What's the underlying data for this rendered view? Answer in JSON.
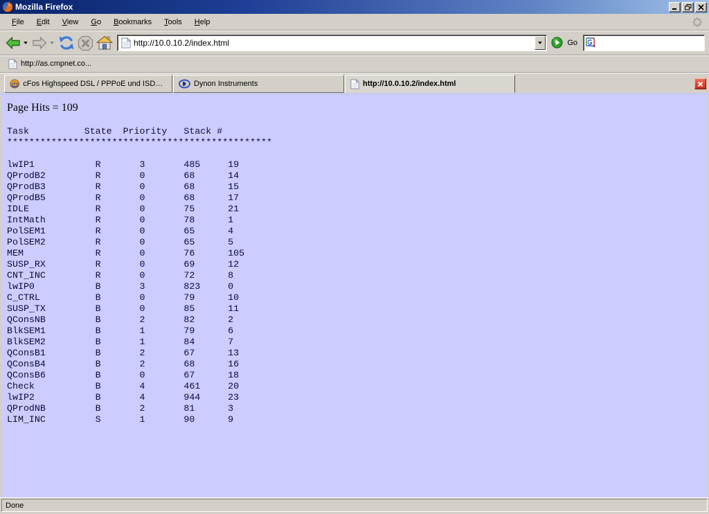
{
  "window": {
    "title": "Mozilla Firefox"
  },
  "menu": {
    "items": [
      "File",
      "Edit",
      "View",
      "Go",
      "Bookmarks",
      "Tools",
      "Help"
    ]
  },
  "toolbar": {
    "url_value": "http://10.0.10.2/index.html",
    "go_label": "Go",
    "search_value": ""
  },
  "bookmarks_bar": {
    "items": [
      {
        "label": "http://as.cmpnet.co..."
      }
    ]
  },
  "tabs": [
    {
      "label": "cFos Highspeed DSL / PPPoE und ISDN CAP...",
      "active": false
    },
    {
      "label": "Dynon Instruments",
      "active": false
    },
    {
      "label": "http://10.0.10.2/index.html",
      "active": true
    }
  ],
  "page": {
    "hits_line": "Page Hits = 109",
    "table": {
      "columns": [
        "Task",
        "State",
        "Priority",
        "Stack",
        "#"
      ],
      "separator": "************************************************",
      "rows": [
        [
          "lwIP1",
          "R",
          "3",
          "485",
          "19"
        ],
        [
          "QProdB2",
          "R",
          "0",
          "68",
          "14"
        ],
        [
          "QProdB3",
          "R",
          "0",
          "68",
          "15"
        ],
        [
          "QProdB5",
          "R",
          "0",
          "68",
          "17"
        ],
        [
          "IDLE",
          "R",
          "0",
          "75",
          "21"
        ],
        [
          "IntMath",
          "R",
          "0",
          "78",
          "1"
        ],
        [
          "PolSEM1",
          "R",
          "0",
          "65",
          "4"
        ],
        [
          "PolSEM2",
          "R",
          "0",
          "65",
          "5"
        ],
        [
          "MEM",
          "R",
          "0",
          "76",
          "105"
        ],
        [
          "SUSP_RX",
          "R",
          "0",
          "69",
          "12"
        ],
        [
          "CNT_INC",
          "R",
          "0",
          "72",
          "8"
        ],
        [
          "lwIP0",
          "B",
          "3",
          "823",
          "0"
        ],
        [
          "C_CTRL",
          "B",
          "0",
          "79",
          "10"
        ],
        [
          "SUSP_TX",
          "B",
          "0",
          "85",
          "11"
        ],
        [
          "QConsNB",
          "B",
          "2",
          "82",
          "2"
        ],
        [
          "BlkSEM1",
          "B",
          "1",
          "79",
          "6"
        ],
        [
          "BlkSEM2",
          "B",
          "1",
          "84",
          "7"
        ],
        [
          "QConsB1",
          "B",
          "2",
          "67",
          "13"
        ],
        [
          "QConsB4",
          "B",
          "2",
          "68",
          "16"
        ],
        [
          "QConsB6",
          "B",
          "0",
          "67",
          "18"
        ],
        [
          "Check",
          "B",
          "4",
          "461",
          "20"
        ],
        [
          "lwIP2",
          "B",
          "4",
          "944",
          "23"
        ],
        [
          "QProdNB",
          "B",
          "2",
          "81",
          "3"
        ],
        [
          "LIM_INC",
          "S",
          "1",
          "90",
          "9"
        ]
      ]
    }
  },
  "statusbar": {
    "text": "Done"
  },
  "colors": {
    "content_bg": "#ccccfe",
    "chrome_gray": "#d4d0c8",
    "title_gradient_start": "#0a246a",
    "title_gradient_end": "#a0c0e8",
    "tab_close_red": "#d63328",
    "back_green": "#55bd3e",
    "reload_blue": "#3f7cd6"
  }
}
